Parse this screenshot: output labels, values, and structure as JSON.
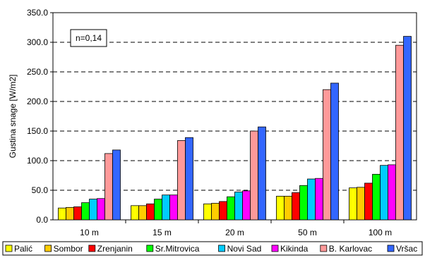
{
  "chart_data": {
    "type": "bar",
    "title": "",
    "xlabel": "",
    "ylabel": "Gustina snage [W/m2]",
    "ylim": [
      0,
      350
    ],
    "yticks": [
      "0.0",
      "50.0",
      "100.0",
      "150.0",
      "200.0",
      "250.0",
      "300.0",
      "350.0"
    ],
    "grid": "horizontal dashed",
    "legend_position": "bottom",
    "annotation": "n=0,14",
    "categories": [
      "10 m",
      "15 m",
      "20 m",
      "50 m",
      "100 m"
    ],
    "series": [
      {
        "name": "Palić",
        "color": "#ffff00",
        "values": [
          20,
          24,
          27,
          40,
          54
        ]
      },
      {
        "name": "Sombor",
        "color": "#ffcc00",
        "values": [
          21,
          24,
          28,
          40,
          55
        ]
      },
      {
        "name": "Zrenjanin",
        "color": "#ff0000",
        "values": [
          22,
          27,
          31,
          46,
          62
        ]
      },
      {
        "name": "Sr.Mitrovica",
        "color": "#00ff00",
        "values": [
          29,
          35,
          39,
          58,
          77
        ]
      },
      {
        "name": "Novi Sad",
        "color": "#00ccff",
        "values": [
          35,
          42,
          47,
          69,
          92
        ]
      },
      {
        "name": "Kikinda",
        "color": "#ff00ff",
        "values": [
          36,
          42,
          49,
          70,
          93
        ]
      },
      {
        "name": "B. Karlovac",
        "color": "#ff9999",
        "values": [
          112,
          134,
          150,
          220,
          295
        ]
      },
      {
        "name": "Vršac",
        "color": "#3366ff",
        "values": [
          118,
          139,
          157,
          231,
          310
        ]
      }
    ]
  }
}
